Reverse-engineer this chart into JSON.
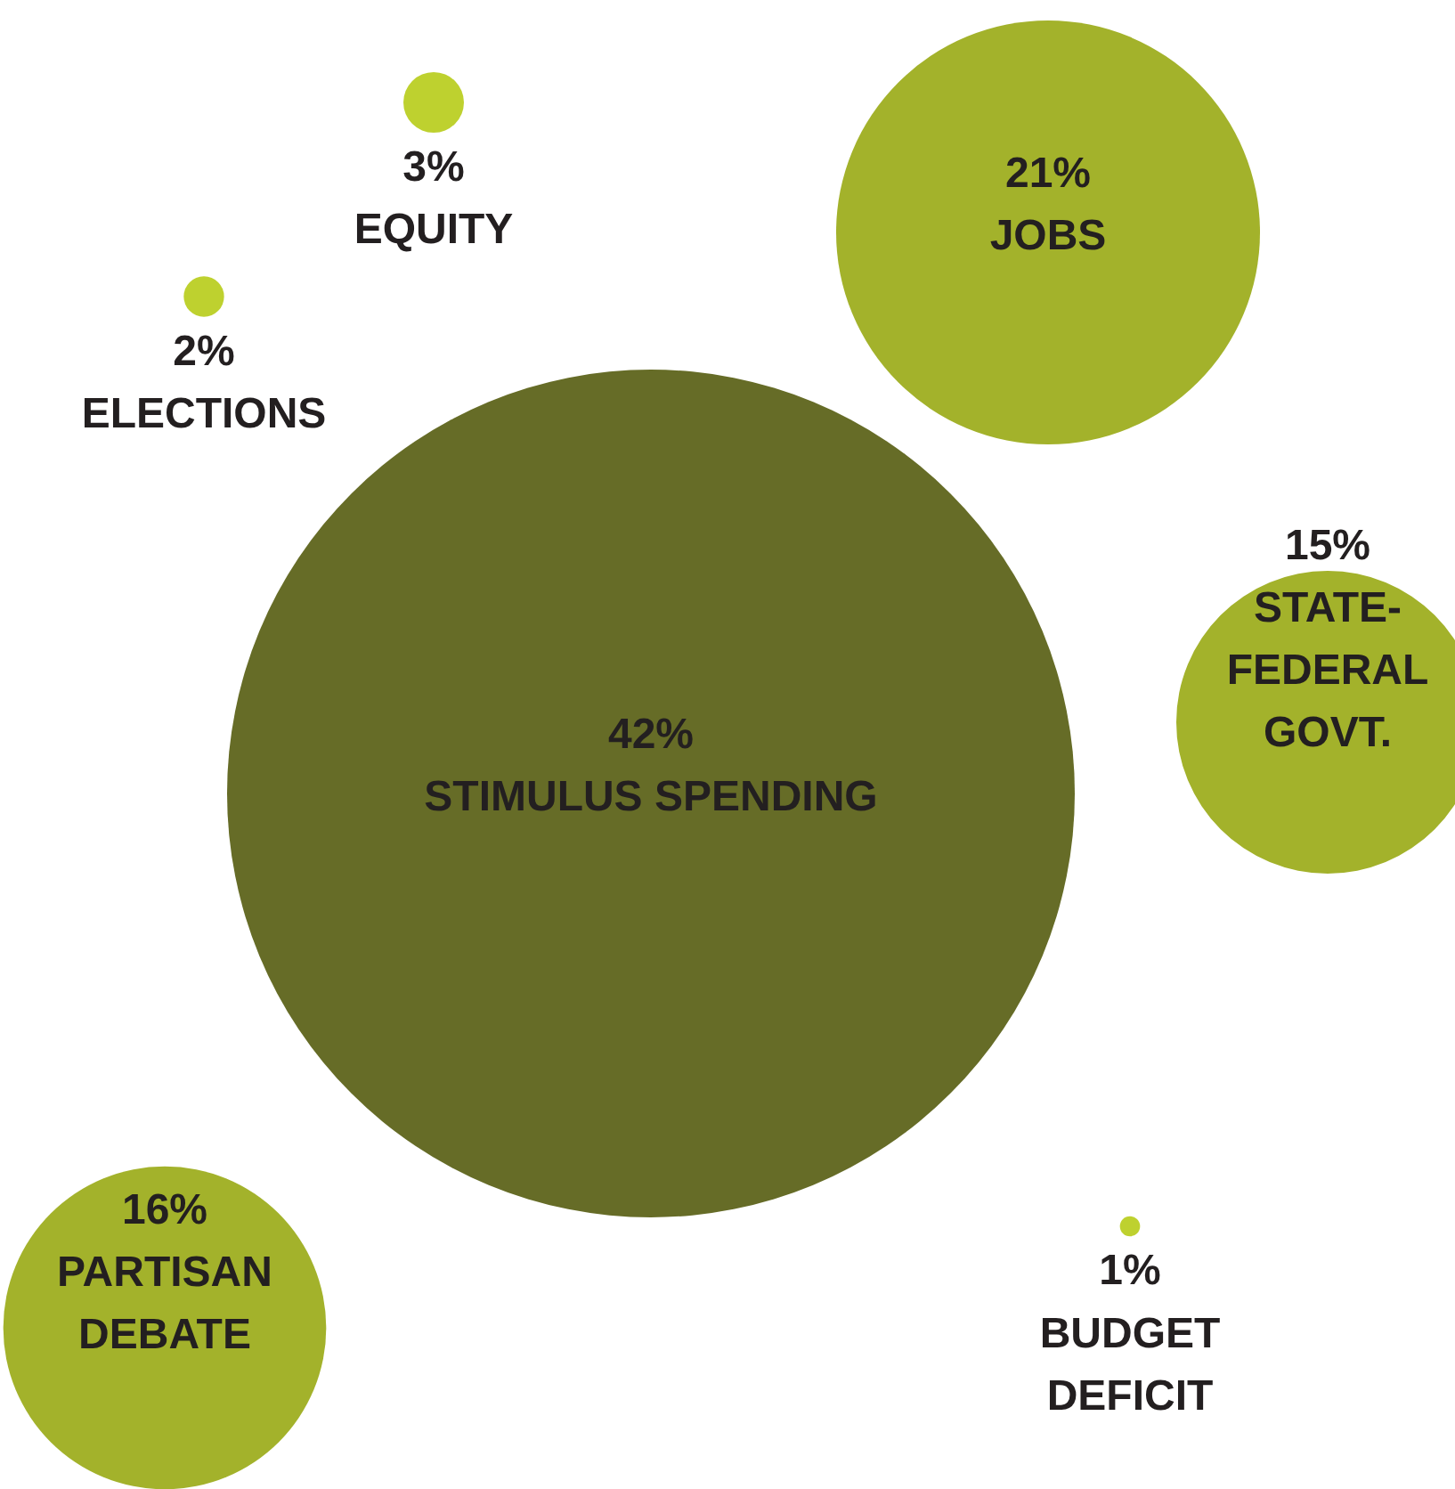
{
  "chart_data": {
    "type": "other",
    "categories": [
      "STIMULUS SPENDING",
      "JOBS",
      "STATE-\nFEDERAL\nGOVT.",
      "PARTISAN\nDEBATE",
      "EQUITY",
      "ELECTIONS",
      "BUDGET\nDEFICIT"
    ],
    "values": [
      42,
      21,
      15,
      16,
      3,
      2,
      1
    ],
    "value_labels": [
      "42%",
      "21%",
      "15%",
      "16%",
      "3%",
      "2%",
      "1%"
    ],
    "colors": [
      "#666c27",
      "#a3b22b",
      "#a3b22b",
      "#a3b22b",
      "#bed12f",
      "#bed12f",
      "#bed12f"
    ]
  }
}
